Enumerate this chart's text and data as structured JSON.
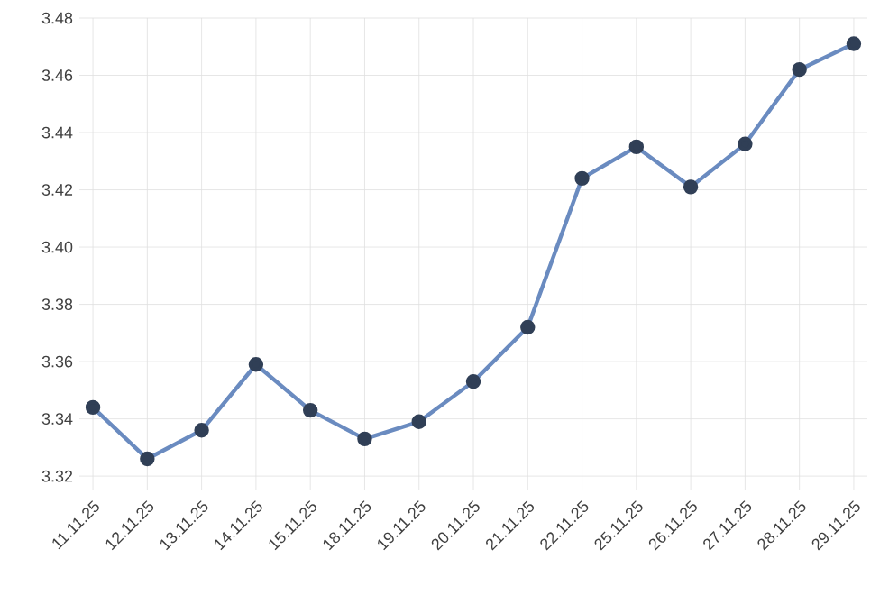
{
  "chart_data": {
    "type": "line",
    "categories": [
      "11.11.25",
      "12.11.25",
      "13.11.25",
      "14.11.25",
      "15.11.25",
      "18.11.25",
      "19.11.25",
      "20.11.25",
      "21.11.25",
      "22.11.25",
      "25.11.25",
      "26.11.25",
      "27.11.25",
      "28.11.25",
      "29.11.25"
    ],
    "series": [
      {
        "color": "#6a8bc0",
        "values": [
          3.344,
          3.326,
          3.336,
          3.359,
          3.343,
          3.333,
          3.339,
          3.353,
          3.372,
          3.424,
          3.435,
          3.421,
          3.436,
          3.462,
          3.471
        ]
      }
    ],
    "ylim": [
      3.315,
      3.48
    ],
    "yticks": [
      3.32,
      3.34,
      3.36,
      3.38,
      {
        "value": 3.4,
        "label": "3.40"
      },
      3.42,
      3.44,
      3.46,
      3.48
    ],
    "grid": true,
    "marker": "circle",
    "line_style": "solid"
  }
}
